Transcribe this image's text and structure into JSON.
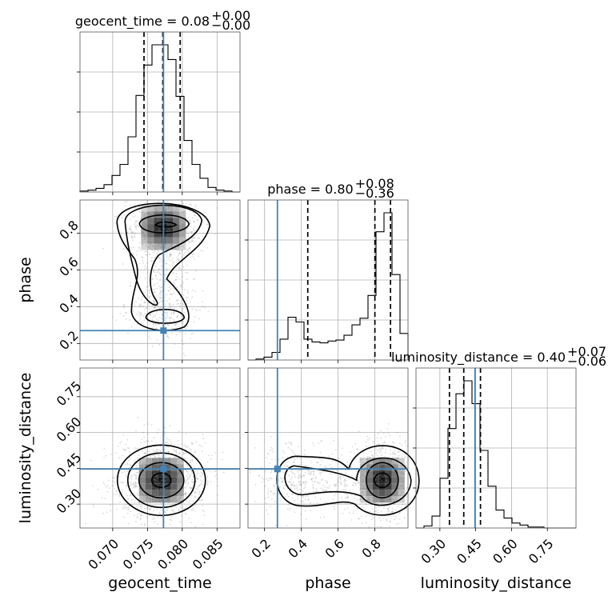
{
  "chart_data": {
    "type": "corner",
    "parameters": [
      {
        "key": "geocent_time",
        "label": "geocent_time",
        "title_text": "geocent_time = 0.08",
        "title_plus": "+0.00",
        "title_minus": "−0.00",
        "range": [
          0.0653,
          0.0883
        ],
        "ticks": [
          0.07,
          0.075,
          0.08,
          0.085
        ],
        "tick_labels": [
          "0.070",
          "0.075",
          "0.080",
          "0.085"
        ],
        "truth": 0.0773,
        "quantiles": [
          0.0745,
          0.0772,
          0.0797
        ],
        "hist_edges_start": 0.0653,
        "hist_bin_width": 0.00115,
        "hist_counts": [
          1,
          2,
          4,
          8,
          18,
          30,
          60,
          105,
          138,
          160,
          160,
          144,
          104,
          56,
          30,
          15,
          5,
          2,
          1,
          0
        ]
      },
      {
        "key": "phase",
        "label": "phase",
        "title_text": "phase = 0.80",
        "title_plus": "+0.08",
        "title_minus": "−0.36",
        "range": [
          0.11,
          0.98
        ],
        "ticks": [
          0.2,
          0.4,
          0.6,
          0.8
        ],
        "tick_labels": [
          "0.2",
          "0.4",
          "0.6",
          "0.8"
        ],
        "truth": 0.27,
        "quantiles": [
          0.435,
          0.8,
          0.885
        ],
        "hist_edges_start": 0.11,
        "hist_bin_width": 0.0435,
        "hist_counts": [
          0,
          1,
          3,
          8,
          22,
          45,
          40,
          22,
          19,
          18,
          20,
          21,
          26,
          37,
          44,
          68,
          135,
          155,
          90,
          28
        ]
      },
      {
        "key": "luminosity_distance",
        "label": "luminosity_distance",
        "title_text": "luminosity_distance = 0.40",
        "title_plus": "+0.07",
        "title_minus": "−0.06",
        "range": [
          0.2,
          0.87
        ],
        "ticks": [
          0.3,
          0.45,
          0.6,
          0.75
        ],
        "tick_labels": [
          "0.30",
          "0.45",
          "0.60",
          "0.75"
        ],
        "truth": 0.447,
        "quantiles": [
          0.34,
          0.4,
          0.47
        ],
        "hist_edges_start": 0.2,
        "hist_bin_width": 0.0335,
        "hist_counts": [
          0,
          2,
          12,
          50,
          100,
          135,
          148,
          125,
          78,
          42,
          18,
          10,
          5,
          3,
          1,
          1,
          0,
          0,
          0,
          0
        ]
      }
    ],
    "truth_color": "#4682b4",
    "contour_levels": [
      "0.5",
      "1.0",
      "1.5",
      "2.0"
    ],
    "grid": true
  }
}
